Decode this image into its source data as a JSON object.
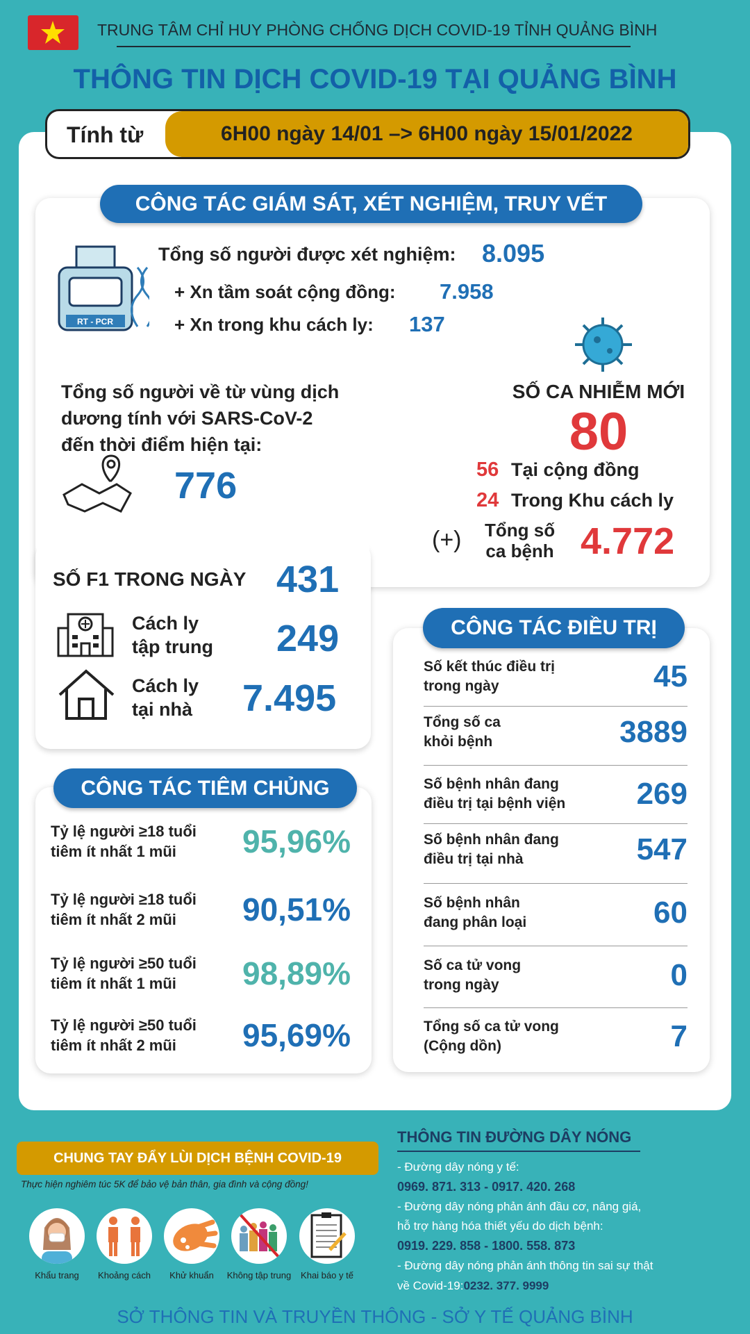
{
  "header": {
    "org": "TRUNG TÂM CHỈ HUY PHÒNG CHỐNG DỊCH COVID-19 TỈNH QUẢNG BÌNH",
    "title": "THÔNG TIN DỊCH COVID-19 TẠI QUẢNG BÌNH",
    "since_label": "Tính từ",
    "period": "6H00 ngày 14/01 –> 6H00 ngày 15/01/2022"
  },
  "surveillance": {
    "title": "CÔNG TÁC GIÁM SÁT, XÉT NGHIỆM, TRUY VẾT",
    "rtpcr_label": "RT - PCR",
    "tested_label": "Tổng số người được xét nghiệm:",
    "tested": "8.095",
    "community_label": "+ Xn tầm soát cộng đồng:",
    "community": "7.958",
    "quarantine_label": "+ Xn trong khu cách ly:",
    "quarantine": "137",
    "returnees_lines": [
      "Tổng số người về từ vùng dịch",
      "dương tính với SARS-CoV-2",
      "đến thời điểm hiện tại:"
    ],
    "returnees": "776",
    "new_cases_label": "SỐ CA NHIỄM MỚI",
    "new_cases": "80",
    "community_cases": "56",
    "community_cases_label": "Tại cộng đồng",
    "quarantine_cases": "24",
    "quarantine_cases_label": "Trong Khu cách ly",
    "plus_sign": "(+)",
    "total_label_1": "Tổng số",
    "total_label_2": "ca bệnh",
    "total_cases": "4.772",
    "f1_label": "SỐ F1 TRONG NGÀY",
    "f1": "431",
    "central_label_1": "Cách ly",
    "central_label_2": "tập trung",
    "central": "249",
    "home_label_1": "Cách ly",
    "home_label_2": "tại nhà",
    "home": "7.495"
  },
  "treatment": {
    "title": "CÔNG TÁC ĐIỀU TRỊ",
    "rows": [
      {
        "l1": "Số kết thúc điều trị",
        "l2": "trong ngày",
        "value": "45"
      },
      {
        "l1": "Tổng số ca",
        "l2": "khỏi bệnh",
        "value": "3889"
      },
      {
        "l1": "Số bệnh nhân đang",
        "l2": "điều trị tại bệnh viện",
        "value": "269"
      },
      {
        "l1": "Số bệnh nhân đang",
        "l2": "điều trị tại nhà",
        "value": "547"
      },
      {
        "l1": "Số bệnh nhân",
        "l2": "đang phân loại",
        "value": "60"
      },
      {
        "l1": "Số ca tử vong",
        "l2": "trong ngày",
        "value": "0"
      },
      {
        "l1": "Tổng số ca tử vong",
        "l2": "(Cộng dồn)",
        "value": "7"
      }
    ]
  },
  "vaccination": {
    "title": "CÔNG TÁC TIÊM CHỦNG",
    "rows": [
      {
        "l1": "Tỷ lệ người ≥18 tuổi",
        "l2": "tiêm ít nhất 1 mũi",
        "value": "95,96%"
      },
      {
        "l1": "Tỷ lệ người ≥18 tuổi",
        "l2": "tiêm ít nhất 2 mũi",
        "value": "90,51%"
      },
      {
        "l1": "Tỷ lệ người ≥50 tuổi",
        "l2": "tiêm ít nhất 1 mũi",
        "value": "98,89%"
      },
      {
        "l1": "Tỷ lệ người ≥50 tuổi",
        "l2": "tiêm ít nhất 2 mũi",
        "value": "95,69%"
      }
    ]
  },
  "campaign": {
    "banner": "CHUNG TAY ĐẨY LÙI DỊCH BỆNH COVID-19",
    "slogan": "Thực hiện nghiêm túc 5K để bảo vệ bản thân, gia đình và cộng đồng!",
    "items": [
      "Khẩu trang",
      "Khoảng cách",
      "Khử khuẩn",
      "Không tập trung",
      "Khai báo y tế"
    ]
  },
  "hotline": {
    "title": "THÔNG TIN ĐƯỜNG DÂY NÓNG",
    "lines": [
      "- Đường dây nóng y tế:",
      "0969. 871. 313   -  0917. 420. 268",
      "- Đường dây nóng phản ánh đầu cơ, nâng giá,",
      "hỗ trợ hàng hóa thiết yếu do dịch bệnh:",
      "0919. 229. 858  -  1800. 558. 873",
      "- Đường dây nóng phản ánh thông tin sai sự thật"
    ],
    "last_prefix": "về Covid-19:",
    "last_number": "0232. 377. 9999"
  },
  "footer": "SỞ THÔNG TIN VÀ TRUYỀN THÔNG - SỞ Y TẾ QUẢNG BÌNH",
  "colors": {
    "background": "#38b2b8",
    "blue": "#1f6fb5",
    "red": "#e0393b",
    "gold": "#d49a00",
    "teal": "#4fb3ab"
  }
}
